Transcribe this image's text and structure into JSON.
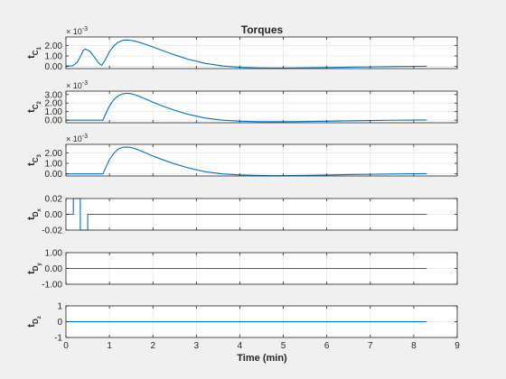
{
  "colors": {
    "figure_bg": "#f0f0f0",
    "axes_bg": "#ffffff",
    "grid": "#e6e6e6",
    "axis": "#262626",
    "line": "#0072bd"
  },
  "chart_data": [
    {
      "type": "line",
      "title": "Torques",
      "ylabel": {
        "main": "t",
        "sub1": "C",
        "sub2": "1"
      },
      "exponent": {
        "base": "× 10",
        "power": "-3"
      },
      "xlim": [
        0,
        9
      ],
      "ylim": [
        -0.2,
        2.8
      ],
      "yticks": [
        0,
        1,
        2
      ],
      "ytick_labels": [
        "0.00",
        "1.00",
        "2.00"
      ],
      "xticks": [
        0,
        1,
        2,
        3,
        4,
        5,
        6,
        7,
        8,
        9
      ],
      "xtick_labels": [],
      "grid": true,
      "series": [
        {
          "x": [
            0,
            0.15,
            0.25,
            0.35,
            0.4,
            0.45,
            0.55,
            0.65,
            0.75,
            0.82,
            0.9,
            1.0,
            1.1,
            1.2,
            1.3,
            1.4,
            1.5,
            1.6,
            1.8,
            2.0,
            2.2,
            2.5,
            2.8,
            3.2,
            3.6,
            4.0,
            4.4,
            4.8,
            5.2,
            5.6,
            6.0,
            6.5,
            7.0,
            7.5,
            8.0,
            8.3
          ],
          "y": [
            0.05,
            0.06,
            0.35,
            1.1,
            1.55,
            1.65,
            1.45,
            0.9,
            0.35,
            0.1,
            0.6,
            1.4,
            1.95,
            2.3,
            2.48,
            2.52,
            2.48,
            2.4,
            2.15,
            1.85,
            1.55,
            1.1,
            0.7,
            0.3,
            0.05,
            -0.08,
            -0.13,
            -0.15,
            -0.14,
            -0.12,
            -0.1,
            -0.07,
            -0.04,
            -0.01,
            0.01,
            0.02
          ]
        }
      ]
    },
    {
      "type": "line",
      "title": "",
      "ylabel": {
        "main": "t",
        "sub1": "C",
        "sub2": "2"
      },
      "exponent": {
        "base": "× 10",
        "power": "-3"
      },
      "xlim": [
        0,
        9
      ],
      "ylim": [
        -0.3,
        3.4
      ],
      "yticks": [
        0,
        1,
        2,
        3
      ],
      "ytick_labels": [
        "0.00",
        "1.00",
        "2.00",
        "3.00"
      ],
      "xticks": [
        0,
        1,
        2,
        3,
        4,
        5,
        6,
        7,
        8,
        9
      ],
      "xtick_labels": [],
      "grid": true,
      "series": [
        {
          "x": [
            0,
            0.5,
            0.85,
            0.9,
            1.0,
            1.1,
            1.2,
            1.3,
            1.4,
            1.5,
            1.6,
            1.8,
            2.0,
            2.2,
            2.5,
            2.8,
            3.2,
            3.6,
            4.0,
            4.4,
            4.8,
            5.2,
            5.6,
            6.0,
            6.5,
            7.0,
            7.5,
            8.0,
            8.3
          ],
          "y": [
            0,
            0,
            0,
            0.6,
            1.65,
            2.4,
            2.85,
            3.08,
            3.15,
            3.1,
            2.95,
            2.55,
            2.1,
            1.7,
            1.15,
            0.7,
            0.25,
            0.0,
            -0.12,
            -0.17,
            -0.19,
            -0.18,
            -0.15,
            -0.12,
            -0.08,
            -0.04,
            -0.01,
            0.01,
            0.02
          ]
        }
      ]
    },
    {
      "type": "line",
      "title": "",
      "ylabel": {
        "main": "t",
        "sub1": "C",
        "sub2": "3"
      },
      "exponent": {
        "base": "× 10",
        "power": "-3"
      },
      "xlim": [
        0,
        9
      ],
      "ylim": [
        -0.2,
        2.8
      ],
      "yticks": [
        0,
        1,
        2
      ],
      "ytick_labels": [
        "0.00",
        "1.00",
        "2.00"
      ],
      "xticks": [
        0,
        1,
        2,
        3,
        4,
        5,
        6,
        7,
        8,
        9
      ],
      "xtick_labels": [],
      "grid": true,
      "series": [
        {
          "x": [
            0,
            0.5,
            0.85,
            0.9,
            1.0,
            1.1,
            1.2,
            1.3,
            1.4,
            1.5,
            1.6,
            1.8,
            2.0,
            2.2,
            2.5,
            2.8,
            3.2,
            3.6,
            4.0,
            4.4,
            4.8,
            5.2,
            5.6,
            6.0,
            6.5,
            7.0,
            7.5,
            8.0,
            8.3
          ],
          "y": [
            0,
            0,
            0,
            0.45,
            1.35,
            1.95,
            2.35,
            2.52,
            2.55,
            2.5,
            2.38,
            2.05,
            1.7,
            1.38,
            0.95,
            0.58,
            0.2,
            0.0,
            -0.1,
            -0.15,
            -0.17,
            -0.16,
            -0.14,
            -0.11,
            -0.07,
            -0.04,
            -0.01,
            0.01,
            0.02
          ]
        }
      ]
    },
    {
      "type": "line",
      "title": "",
      "ylabel": {
        "main": "t",
        "sub1": "D",
        "sub2": "x"
      },
      "xlim": [
        0,
        9
      ],
      "ylim": [
        -0.02,
        0.02
      ],
      "yticks": [
        -0.02,
        0,
        0.02
      ],
      "ytick_labels": [
        "-0.02",
        "0.00",
        "0.02"
      ],
      "xticks": [
        0,
        1,
        2,
        3,
        4,
        5,
        6,
        7,
        8,
        9
      ],
      "xtick_labels": [],
      "grid": true,
      "series": [
        {
          "x": [
            0,
            0.17,
            0.17,
            0.33,
            0.33,
            0.5,
            0.5,
            8.3
          ],
          "y": [
            0,
            0,
            0.02,
            0.02,
            -0.02,
            -0.02,
            0,
            0
          ]
        }
      ]
    },
    {
      "type": "line",
      "title": "",
      "ylabel": {
        "main": "t",
        "sub1": "D",
        "sub2": "y"
      },
      "xlim": [
        0,
        9
      ],
      "ylim": [
        -1,
        1
      ],
      "yticks": [
        -1,
        0,
        1
      ],
      "ytick_labels": [
        "-1.00",
        "0.00",
        "1.00"
      ],
      "xticks": [
        0,
        1,
        2,
        3,
        4,
        5,
        6,
        7,
        8,
        9
      ],
      "xtick_labels": [],
      "grid": true,
      "series": [
        {
          "x": [
            0,
            8.3
          ],
          "y": [
            0,
            0
          ]
        }
      ]
    },
    {
      "type": "line",
      "title": "",
      "xlabel": "Time (min)",
      "ylabel": {
        "main": "t",
        "sub1": "D",
        "sub2": "z"
      },
      "xlim": [
        0,
        9
      ],
      "ylim": [
        -1,
        1
      ],
      "yticks": [
        -1,
        0,
        1
      ],
      "ytick_labels": [
        "-1",
        "0",
        "1"
      ],
      "xticks": [
        0,
        1,
        2,
        3,
        4,
        5,
        6,
        7,
        8,
        9
      ],
      "xtick_labels": [
        "0",
        "1",
        "2",
        "3",
        "4",
        "5",
        "6",
        "7",
        "8",
        "9"
      ],
      "grid": true,
      "series": [
        {
          "x": [
            0,
            8.3
          ],
          "y": [
            0,
            0
          ]
        }
      ]
    }
  ]
}
